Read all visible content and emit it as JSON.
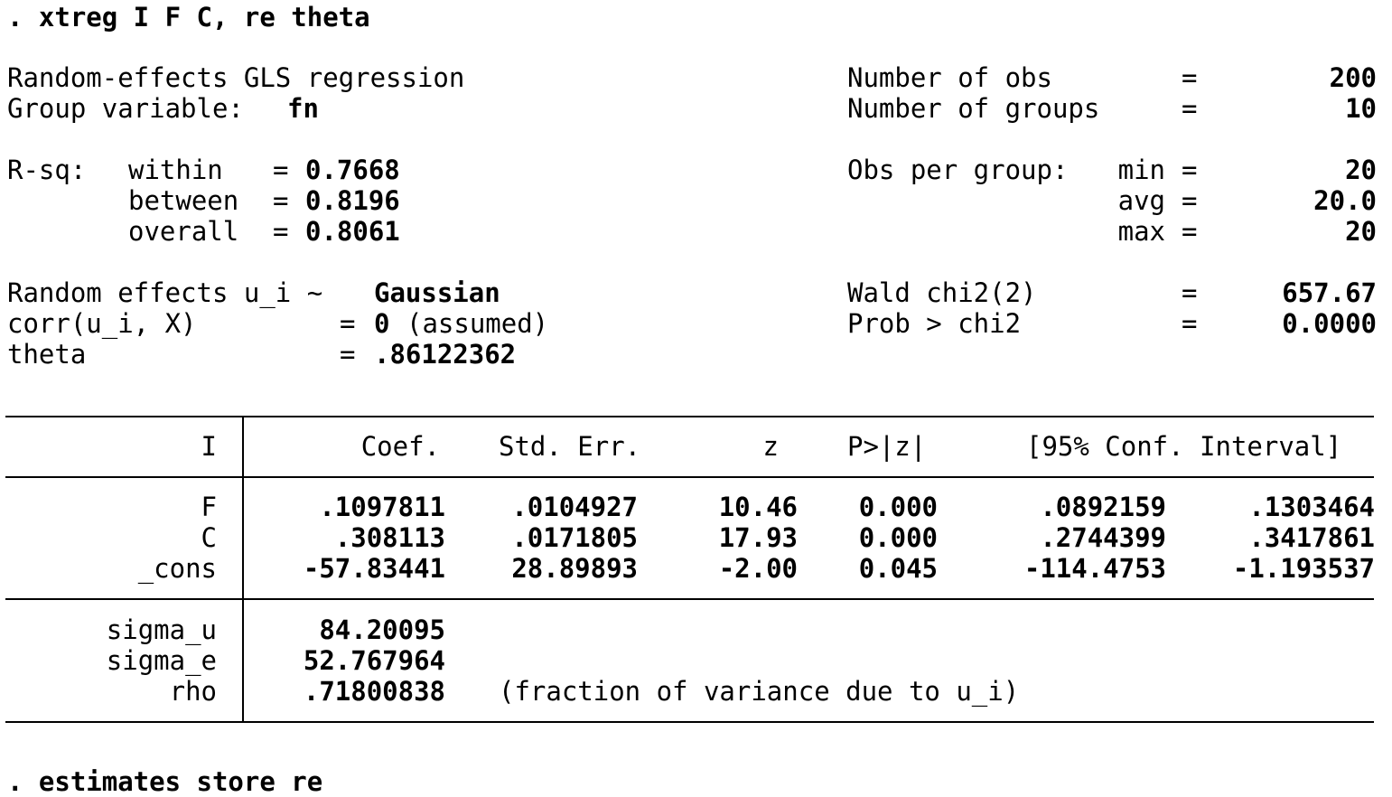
{
  "command": ". xtreg I F C, re theta",
  "header": {
    "model_title": "Random-effects GLS regression",
    "group_label": "Group variable:",
    "group_var": "fn",
    "nobs_label": "Number of obs",
    "nobs": "200",
    "ngroups_label": "Number of groups",
    "ngroups": "10",
    "eq": "=",
    "rsq_label": "R-sq:",
    "rsq": [
      {
        "label": "within",
        "value": "0.7668"
      },
      {
        "label": "between",
        "value": "0.8196"
      },
      {
        "label": "overall",
        "value": "0.8061"
      }
    ],
    "obs_per_group_label": "Obs per group:",
    "obs_per_group": [
      {
        "label": "min",
        "value": "20"
      },
      {
        "label": "avg",
        "value": "20.0"
      },
      {
        "label": "max",
        "value": "20"
      }
    ],
    "re_label": "Random effects u_i ~",
    "re_dist": "Gaussian",
    "corr_label": "corr(u_i, X)",
    "corr_value": "0",
    "corr_note": "(assumed)",
    "theta_label": "theta",
    "theta_value": ".86122362",
    "wald_label": "Wald chi2(2)",
    "wald_value": "657.67",
    "prob_label": "Prob > chi2",
    "prob_value": "0.0000"
  },
  "table": {
    "depvar": "I",
    "columns": [
      "Coef.",
      "Std. Err.",
      "z",
      "P>|z|",
      "[95% Conf. Interval]"
    ],
    "rows": [
      {
        "name": "F",
        "coef": ".1097811",
        "se": ".0104927",
        "z": "10.46",
        "p": "0.000",
        "lo": ".0892159",
        "hi": ".1303464"
      },
      {
        "name": "C",
        "coef": ".308113",
        "se": ".0171805",
        "z": "17.93",
        "p": "0.000",
        "lo": ".2744399",
        "hi": ".3417861"
      },
      {
        "name": "_cons",
        "coef": "-57.83441",
        "se": "28.89893",
        "z": "-2.00",
        "p": "0.045",
        "lo": "-114.4753",
        "hi": "-1.193537"
      }
    ],
    "extra": [
      {
        "name": "sigma_u",
        "value": "84.20095"
      },
      {
        "name": "sigma_e",
        "value": "52.767964"
      },
      {
        "name": "rho",
        "value": ".71800838"
      }
    ],
    "rho_note": "(fraction of variance due to u_i)"
  },
  "next_command": ". estimates store re"
}
